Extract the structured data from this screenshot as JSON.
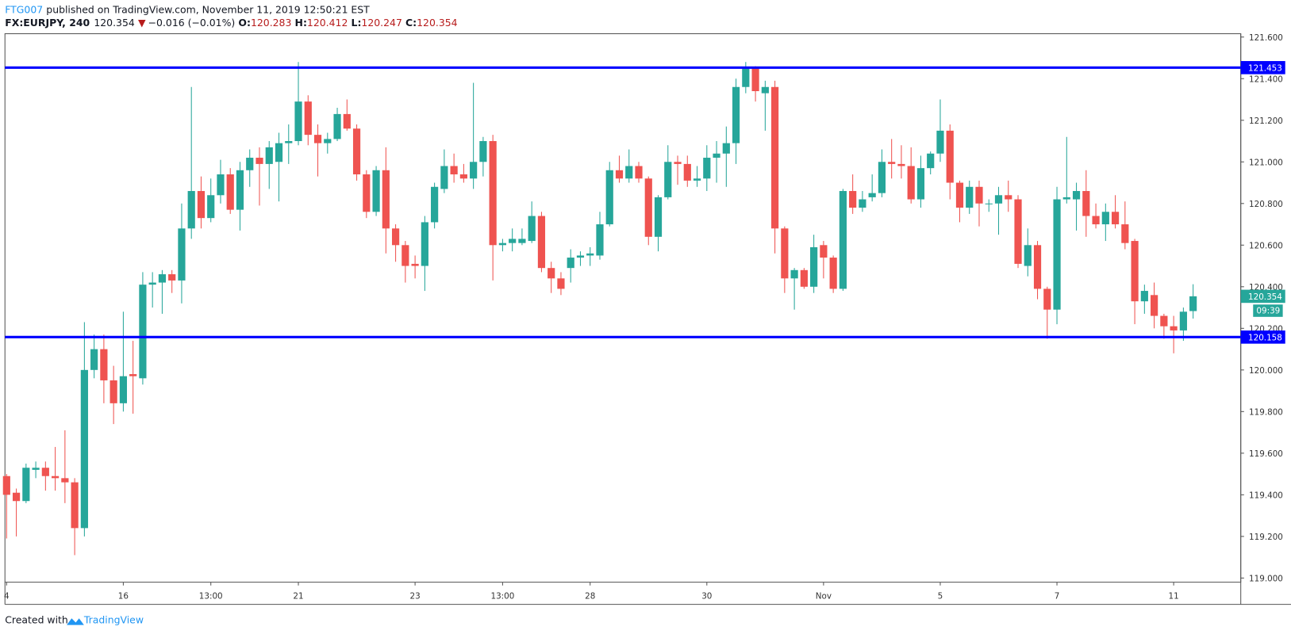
{
  "header": {
    "author": "FTG007",
    "published": "published on TradingView.com, November 11, 2019 12:50:21 EST",
    "symbol": "FX:EURJPY, 240",
    "last": "120.354",
    "direction": "▼",
    "change": "−0.016 (−0.01%)",
    "ohlc": [
      {
        "label": "O:",
        "value": "120.283"
      },
      {
        "label": "H:",
        "value": "120.412"
      },
      {
        "label": "L:",
        "value": "120.247"
      },
      {
        "label": "C:",
        "value": "120.354"
      }
    ]
  },
  "chart_data": {
    "type": "candlestick",
    "up_color": "#26a69a",
    "down_color": "#ef5350",
    "grid": false,
    "open": [
      119.49,
      119.41,
      119.37,
      119.52,
      119.53,
      119.49,
      119.48,
      119.46,
      119.24,
      120.0,
      120.1,
      119.95,
      119.84,
      119.98,
      119.96,
      120.41,
      120.42,
      120.46,
      120.43,
      120.68,
      120.86,
      120.73,
      120.84,
      120.94,
      120.77,
      120.96,
      121.02,
      120.99,
      121.0,
      121.09,
      121.1,
      121.29,
      121.13,
      121.09,
      121.11,
      121.23,
      121.16,
      120.94,
      120.76,
      120.96,
      120.68,
      120.6,
      120.51,
      120.5,
      120.71,
      120.87,
      120.98,
      120.94,
      120.92,
      121.0,
      121.1,
      120.6,
      120.61,
      120.61,
      120.62,
      120.74,
      120.49,
      120.44,
      120.49,
      120.54,
      120.55,
      120.55,
      120.7,
      120.96,
      120.92,
      120.98,
      120.92,
      120.64,
      120.83,
      121.0,
      120.99,
      120.91,
      120.92,
      121.02,
      121.04,
      121.09,
      121.36,
      121.45,
      121.33,
      121.36,
      120.68,
      120.44,
      120.48,
      120.4,
      120.6,
      120.54,
      120.39,
      120.86,
      120.78,
      120.83,
      120.85,
      121.0,
      120.99,
      120.98,
      120.82,
      120.97,
      121.04,
      121.15,
      120.9,
      120.78,
      120.88,
      120.8,
      120.8,
      120.84,
      120.82,
      120.5,
      120.6,
      120.39,
      120.29,
      120.82,
      120.82,
      120.86,
      120.74,
      120.7,
      120.76,
      120.7,
      120.62,
      120.33,
      120.36,
      120.26,
      120.21,
      120.19,
      120.283
    ],
    "high": [
      119.5,
      119.43,
      119.55,
      119.56,
      119.56,
      119.63,
      119.71,
      119.48,
      120.23,
      120.17,
      120.17,
      120.02,
      120.28,
      120.14,
      120.47,
      120.47,
      120.48,
      120.48,
      120.8,
      121.36,
      120.93,
      120.92,
      121.01,
      120.97,
      121.0,
      121.06,
      121.07,
      121.1,
      121.14,
      121.18,
      121.48,
      121.32,
      121.18,
      121.14,
      121.26,
      121.3,
      121.18,
      120.96,
      120.98,
      121.07,
      120.7,
      120.62,
      120.55,
      120.74,
      120.9,
      121.06,
      121.04,
      120.99,
      121.38,
      121.12,
      121.13,
      120.63,
      120.68,
      120.68,
      120.81,
      120.76,
      120.52,
      120.47,
      120.58,
      120.57,
      120.59,
      120.76,
      121.0,
      121.03,
      121.06,
      121.0,
      120.93,
      120.84,
      121.08,
      121.03,
      121.03,
      120.98,
      121.08,
      121.1,
      121.17,
      121.4,
      121.48,
      121.46,
      121.39,
      121.39,
      120.69,
      120.49,
      120.49,
      120.65,
      120.62,
      120.55,
      120.87,
      120.94,
      120.86,
      120.94,
      121.06,
      121.11,
      121.08,
      121.07,
      121.03,
      121.05,
      121.3,
      121.18,
      120.91,
      120.91,
      120.91,
      120.82,
      120.88,
      120.91,
      120.84,
      120.68,
      120.62,
      120.4,
      120.88,
      121.12,
      120.9,
      120.96,
      120.8,
      120.8,
      120.84,
      120.81,
      120.63,
      120.41,
      120.42,
      120.27,
      120.26,
      120.3,
      120.412
    ],
    "low": [
      119.19,
      119.2,
      119.36,
      119.48,
      119.42,
      119.42,
      119.36,
      119.11,
      119.2,
      119.96,
      119.84,
      119.74,
      119.8,
      119.79,
      119.93,
      120.3,
      120.27,
      120.37,
      120.32,
      120.63,
      120.68,
      120.71,
      120.8,
      120.75,
      120.67,
      120.88,
      120.79,
      120.87,
      120.81,
      120.99,
      121.08,
      121.08,
      120.93,
      121.04,
      121.1,
      121.15,
      120.91,
      120.73,
      120.74,
      120.56,
      120.52,
      120.42,
      120.44,
      120.38,
      120.68,
      120.85,
      120.9,
      120.9,
      120.87,
      120.93,
      120.43,
      120.57,
      120.57,
      120.6,
      120.61,
      120.47,
      120.37,
      120.36,
      120.42,
      120.5,
      120.5,
      120.53,
      120.69,
      120.9,
      120.9,
      120.9,
      120.6,
      120.57,
      120.82,
      120.89,
      120.88,
      120.88,
      120.86,
      120.9,
      120.88,
      120.99,
      121.33,
      121.29,
      121.15,
      120.56,
      120.37,
      120.29,
      120.39,
      120.37,
      120.44,
      120.37,
      120.38,
      120.75,
      120.76,
      120.81,
      120.83,
      120.92,
      120.92,
      120.8,
      120.78,
      120.94,
      121.0,
      120.82,
      120.71,
      120.75,
      120.69,
      120.76,
      120.65,
      120.76,
      120.49,
      120.45,
      120.34,
      120.15,
      120.22,
      120.8,
      120.67,
      120.64,
      120.68,
      120.62,
      120.68,
      120.58,
      120.22,
      120.27,
      120.2,
      120.15,
      120.08,
      120.14,
      120.247
    ],
    "close": [
      119.4,
      119.37,
      119.53,
      119.53,
      119.49,
      119.48,
      119.46,
      119.24,
      120.0,
      120.1,
      119.95,
      119.84,
      119.97,
      119.97,
      120.41,
      120.42,
      120.46,
      120.43,
      120.68,
      120.86,
      120.73,
      120.84,
      120.94,
      120.77,
      120.96,
      121.02,
      120.99,
      121.07,
      121.09,
      121.1,
      121.29,
      121.13,
      121.09,
      121.11,
      121.23,
      121.16,
      120.94,
      120.76,
      120.96,
      120.68,
      120.6,
      120.5,
      120.5,
      120.71,
      120.88,
      120.98,
      120.94,
      120.92,
      121.0,
      121.1,
      120.6,
      120.61,
      120.63,
      120.63,
      120.74,
      120.49,
      120.44,
      120.39,
      120.54,
      120.55,
      120.56,
      120.7,
      120.96,
      120.92,
      120.98,
      120.92,
      120.64,
      120.83,
      121.0,
      120.99,
      120.91,
      120.92,
      121.02,
      121.04,
      121.09,
      121.36,
      121.45,
      121.34,
      121.36,
      120.68,
      120.44,
      120.48,
      120.4,
      120.59,
      120.54,
      120.39,
      120.86,
      120.78,
      120.82,
      120.85,
      121.0,
      120.99,
      120.98,
      120.82,
      120.97,
      121.04,
      121.15,
      120.9,
      120.78,
      120.88,
      120.8,
      120.8,
      120.84,
      120.82,
      120.51,
      120.6,
      120.39,
      120.29,
      120.82,
      120.83,
      120.86,
      120.74,
      120.7,
      120.76,
      120.7,
      120.61,
      120.33,
      120.38,
      120.26,
      120.21,
      120.19,
      120.28,
      120.354
    ],
    "countdown": "09:39",
    "hlines": [
      {
        "value": 121.453,
        "color": "#0000ff"
      },
      {
        "value": 120.158,
        "color": "#0000ff"
      }
    ],
    "xlim": [
      -0.17,
      126.9
    ],
    "xticks": [
      {
        "value": 0,
        "label": "4"
      },
      {
        "value": 12,
        "label": "16"
      },
      {
        "value": 21,
        "label": "13:00"
      },
      {
        "value": 30,
        "label": "21"
      },
      {
        "value": 42,
        "label": "23"
      },
      {
        "value": 51,
        "label": "13:00"
      },
      {
        "value": 60,
        "label": "28"
      },
      {
        "value": 72,
        "label": "30"
      },
      {
        "value": 84,
        "label": "Nov"
      },
      {
        "value": 96,
        "label": "5"
      },
      {
        "value": 108,
        "label": "7"
      },
      {
        "value": 120,
        "label": "11"
      }
    ],
    "ylim": [
      118.98,
      121.616
    ],
    "yticks": [
      {
        "value": 121.6,
        "label": "121.600"
      },
      {
        "value": 121.4,
        "label": "121.400"
      },
      {
        "value": 121.2,
        "label": "121.200"
      },
      {
        "value": 121.0,
        "label": "121.000"
      },
      {
        "value": 120.8,
        "label": "120.800"
      },
      {
        "value": 120.6,
        "label": "120.600"
      },
      {
        "value": 120.4,
        "label": "120.400"
      },
      {
        "value": 120.2,
        "label": "120.200"
      },
      {
        "value": 120.0,
        "label": "120.000"
      },
      {
        "value": 119.8,
        "label": "119.800"
      },
      {
        "value": 119.6,
        "label": "119.600"
      },
      {
        "value": 119.4,
        "label": "119.400"
      },
      {
        "value": 119.2,
        "label": "119.200"
      },
      {
        "value": 119.0,
        "label": "119.000"
      }
    ]
  },
  "footer": {
    "created_with": "Created with",
    "brand": "TradingView"
  }
}
